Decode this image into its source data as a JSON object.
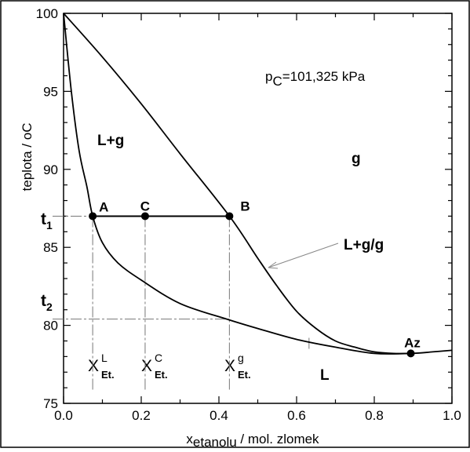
{
  "chart_data": {
    "type": "line",
    "title": "",
    "xlabel": "x",
    "xlabel_sub": "etanolu",
    "xlabel_rest": " / mol. zlomek",
    "ylabel": "teplota / °C",
    "ylabel_display": "teplota / oC",
    "xlim": [
      0.0,
      1.0
    ],
    "ylim": [
      75,
      100
    ],
    "x_ticks": [
      0.0,
      0.2,
      0.4,
      0.6,
      0.8,
      1.0
    ],
    "x_tick_labels": [
      "0.0",
      "0.2",
      "0.4",
      "0.6",
      "0.8",
      "1.0"
    ],
    "y_ticks": [
      75,
      80,
      85,
      90,
      95,
      100
    ],
    "y_tick_labels": [
      "75",
      "80",
      "85",
      "90",
      "95",
      "100"
    ],
    "grid": false,
    "series": [
      {
        "role": "liquid",
        "x": [
          0.0,
          0.02,
          0.04,
          0.06,
          0.075,
          0.1,
          0.14,
          0.2,
          0.3,
          0.42,
          0.5,
          0.6,
          0.7,
          0.8,
          0.894,
          0.95,
          1.0
        ],
        "y": [
          100.0,
          95.0,
          91.2,
          88.9,
          87.0,
          85.3,
          84.0,
          82.9,
          81.4,
          80.4,
          79.8,
          79.1,
          78.6,
          78.2,
          78.2,
          78.3,
          78.4
        ]
      },
      {
        "role": "vapour",
        "x": [
          0.0,
          0.1,
          0.2,
          0.3,
          0.427,
          0.5,
          0.55,
          0.6,
          0.65,
          0.7,
          0.75,
          0.8,
          0.85,
          0.894
        ],
        "y": [
          100.0,
          97.2,
          94.2,
          91.0,
          87.0,
          84.3,
          82.5,
          80.9,
          79.8,
          79.0,
          78.6,
          78.3,
          78.2,
          78.2
        ]
      }
    ],
    "tie_line": {
      "t": 87.0,
      "x_from": 0.075,
      "x_to": 0.427
    },
    "points": [
      {
        "label": "A",
        "x": 0.075,
        "y": 87.0
      },
      {
        "label": "C",
        "x": 0.21,
        "y": 87.0
      },
      {
        "label": "B",
        "x": 0.427,
        "y": 87.0
      },
      {
        "label": "Az",
        "x": 0.894,
        "y": 78.2
      }
    ],
    "reference_lines": {
      "t1": 87.0,
      "t2": 80.4,
      "x_verticals": [
        0.075,
        0.21,
        0.427
      ],
      "x_L_mark": 0.632
    },
    "annotations": {
      "t1": {
        "letter": "t",
        "sub": "1"
      },
      "t2": {
        "letter": "t",
        "sub": "2"
      },
      "XL": {
        "letter": "X",
        "sup": "L",
        "sub": "Et."
      },
      "XC": {
        "letter": "X",
        "sup": "C",
        "sub": "Et."
      },
      "Xg": {
        "letter": "X",
        "sup": "g",
        "sub": "Et."
      },
      "pressure": {
        "p": "p",
        "sub": "C",
        "rest": "=101,325 kPa"
      },
      "regions": {
        "LG": "L+g",
        "G": "g",
        "L": "L",
        "LGG": "L+g/g"
      }
    }
  }
}
